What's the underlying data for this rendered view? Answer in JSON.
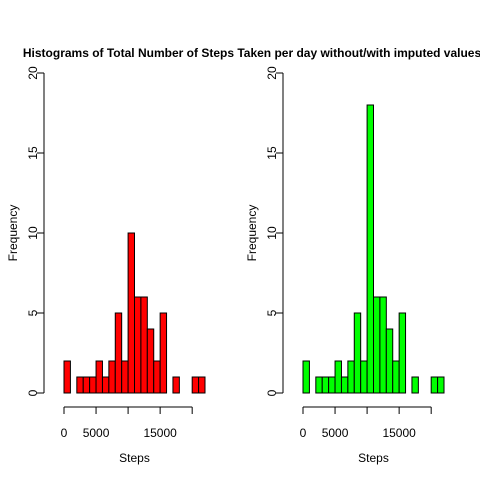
{
  "title": "Histograms of Total Number of Steps Taken per day without/with imputed values",
  "chart_data": [
    {
      "type": "bar",
      "xlabel": "Steps",
      "ylabel": "Frequency",
      "color": "#ff0000",
      "bin_width": 1000,
      "xlim": [
        0,
        22000
      ],
      "ylim": [
        0,
        20
      ],
      "x_ticks": [
        "0",
        "5000",
        "15000"
      ],
      "x_tick_values": [
        0,
        5000,
        10000,
        15000,
        20000
      ],
      "y_ticks": [
        0,
        5,
        10,
        15,
        20
      ],
      "values": [
        2,
        0,
        1,
        1,
        1,
        2,
        1,
        2,
        5,
        2,
        10,
        6,
        6,
        4,
        2,
        5,
        0,
        1,
        0,
        0,
        1,
        1
      ]
    },
    {
      "type": "bar",
      "xlabel": "Steps",
      "ylabel": "Frequency",
      "color": "#00ff00",
      "bin_width": 1000,
      "xlim": [
        0,
        22000
      ],
      "ylim": [
        0,
        20
      ],
      "x_ticks": [
        "0",
        "5000",
        "15000"
      ],
      "x_tick_values": [
        0,
        5000,
        10000,
        15000,
        20000
      ],
      "y_ticks": [
        0,
        5,
        10,
        15,
        20
      ],
      "values": [
        2,
        0,
        1,
        1,
        1,
        2,
        1,
        2,
        5,
        2,
        18,
        6,
        6,
        4,
        2,
        5,
        0,
        1,
        0,
        0,
        1,
        1
      ]
    }
  ]
}
